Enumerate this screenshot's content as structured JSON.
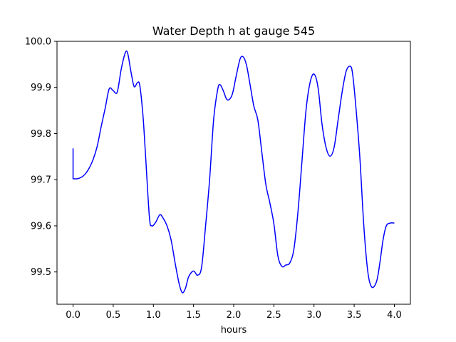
{
  "chart_data": {
    "type": "line",
    "title": "Water Depth h at gauge 545",
    "xlabel": "hours",
    "ylabel": "",
    "xlim": [
      -0.2,
      4.2
    ],
    "ylim": [
      99.43,
      100.0
    ],
    "grid": false,
    "xticks": [
      {
        "value": 0.0,
        "label": "0.0"
      },
      {
        "value": 0.5,
        "label": "0.5"
      },
      {
        "value": 1.0,
        "label": "1.0"
      },
      {
        "value": 1.5,
        "label": "1.5"
      },
      {
        "value": 2.0,
        "label": "2.0"
      },
      {
        "value": 2.5,
        "label": "2.5"
      },
      {
        "value": 3.0,
        "label": "3.0"
      },
      {
        "value": 3.5,
        "label": "3.5"
      },
      {
        "value": 4.0,
        "label": "4.0"
      }
    ],
    "yticks": [
      {
        "value": 99.5,
        "label": "99.5"
      },
      {
        "value": 99.6,
        "label": "99.6"
      },
      {
        "value": 99.7,
        "label": "99.7"
      },
      {
        "value": 99.8,
        "label": "99.8"
      },
      {
        "value": 99.9,
        "label": "99.9"
      },
      {
        "value": 100.0,
        "label": "100.0"
      }
    ],
    "series": [
      {
        "color": "#0000ff",
        "x": [
          0.0,
          0.0,
          0.05,
          0.1,
          0.15,
          0.2,
          0.25,
          0.3,
          0.35,
          0.4,
          0.45,
          0.5,
          0.55,
          0.6,
          0.65,
          0.68,
          0.72,
          0.76,
          0.8,
          0.83,
          0.87,
          0.9,
          0.95,
          0.98,
          1.03,
          1.08,
          1.12,
          1.17,
          1.22,
          1.27,
          1.32,
          1.36,
          1.4,
          1.44,
          1.5,
          1.55,
          1.6,
          1.65,
          1.7,
          1.75,
          1.8,
          1.83,
          1.87,
          1.92,
          1.98,
          2.03,
          2.08,
          2.12,
          2.16,
          2.2,
          2.25,
          2.3,
          2.35,
          2.4,
          2.45,
          2.5,
          2.55,
          2.6,
          2.65,
          2.7,
          2.75,
          2.8,
          2.85,
          2.9,
          2.95,
          3.0,
          3.05,
          3.1,
          3.15,
          3.2,
          3.25,
          3.3,
          3.35,
          3.4,
          3.45,
          3.48,
          3.52,
          3.57,
          3.62,
          3.67,
          3.72,
          3.78,
          3.82,
          3.86,
          3.9,
          3.95,
          4.0
        ],
        "y": [
          99.768,
          99.702,
          99.702,
          99.705,
          99.712,
          99.725,
          99.744,
          99.772,
          99.815,
          99.855,
          99.897,
          99.893,
          99.89,
          99.94,
          99.975,
          99.974,
          99.935,
          99.902,
          99.91,
          99.905,
          99.84,
          99.76,
          99.62,
          99.6,
          99.608,
          99.624,
          99.617,
          99.6,
          99.57,
          99.52,
          99.475,
          99.455,
          99.465,
          99.49,
          99.502,
          99.493,
          99.51,
          99.6,
          99.7,
          99.83,
          99.895,
          99.906,
          99.893,
          99.873,
          99.884,
          99.924,
          99.962,
          99.966,
          99.948,
          99.91,
          99.86,
          99.83,
          99.76,
          99.69,
          99.65,
          99.605,
          99.535,
          99.512,
          99.515,
          99.52,
          99.55,
          99.63,
          99.74,
          99.85,
          99.91,
          99.929,
          99.9,
          99.82,
          99.77,
          99.751,
          99.77,
          99.83,
          99.89,
          99.935,
          99.946,
          99.93,
          99.86,
          99.75,
          99.6,
          99.5,
          99.467,
          99.48,
          99.52,
          99.57,
          99.6,
          99.606,
          99.606
        ]
      }
    ]
  }
}
